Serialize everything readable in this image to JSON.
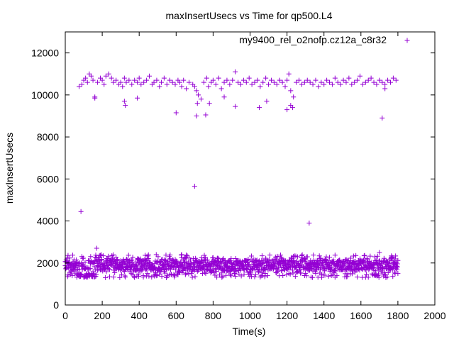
{
  "chart_data": {
    "type": "scatter",
    "title": "maxInsertUsecs vs Time for qp500.L4",
    "xlabel": "Time(s)",
    "ylabel": "maxInsertUsecs",
    "xlim": [
      0,
      2000
    ],
    "ylim": [
      0,
      13000
    ],
    "x_ticks": [
      0,
      200,
      400,
      600,
      800,
      1000,
      1200,
      1400,
      1600,
      1800,
      2000
    ],
    "y_ticks": [
      0,
      2000,
      4000,
      6000,
      8000,
      10000,
      12000
    ],
    "grid": false,
    "legend_position": "top-right",
    "marker": "+",
    "series": [
      {
        "name": "my9400_rel_o2nofp.cz12a_c8r32",
        "color": "#9400d3",
        "x": [
          75,
          90,
          100,
          110,
          120,
          130,
          140,
          150,
          160,
          175,
          190,
          200,
          210,
          220,
          235,
          250,
          260,
          275,
          290,
          300,
          310,
          320,
          330,
          345,
          360,
          375,
          390,
          400,
          410,
          425,
          440,
          455,
          470,
          480,
          495,
          510,
          520,
          535,
          550,
          565,
          580,
          595,
          610,
          620,
          630,
          640,
          655,
          670,
          690,
          700,
          710,
          720,
          735,
          750,
          765,
          775,
          790,
          800,
          815,
          830,
          845,
          860,
          875,
          890,
          905,
          920,
          935,
          950,
          965,
          980,
          995,
          1010,
          1025,
          1040,
          1055,
          1070,
          1085,
          1100,
          1115,
          1130,
          1145,
          1160,
          1175,
          1190,
          1200,
          1210,
          1220,
          1235,
          1250,
          1265,
          1280,
          1295,
          1310,
          1325,
          1340,
          1355,
          1370,
          1385,
          1400,
          1415,
          1430,
          1445,
          1460,
          1475,
          1490,
          1505,
          1520,
          1535,
          1550,
          1565,
          1580,
          1595,
          1610,
          1625,
          1640,
          1655,
          1670,
          1685,
          1700,
          1715,
          1730,
          1745,
          1760,
          1775,
          1790,
          85,
          160,
          320,
          325,
          390,
          600,
          700,
          710,
          715,
          760,
          780,
          860,
          920,
          1050,
          1090,
          1200,
          1220,
          1230,
          1320,
          1715,
          1730
        ],
        "y": [
          10400,
          10500,
          10700,
          10800,
          10600,
          11000,
          10900,
          10700,
          9900,
          10600,
          10800,
          10700,
          10500,
          10900,
          11000,
          10800,
          10600,
          10700,
          10500,
          10600,
          10400,
          10800,
          10600,
          10700,
          10500,
          10700,
          10600,
          10800,
          10500,
          10600,
          10700,
          10900,
          10500,
          10600,
          10700,
          10400,
          10600,
          10800,
          10500,
          10700,
          10600,
          10500,
          10700,
          10600,
          10400,
          10700,
          10300,
          10600,
          10500,
          10400,
          10200,
          10000,
          9800,
          10600,
          10800,
          10400,
          10600,
          10700,
          10500,
          10800,
          10300,
          10600,
          10700,
          10500,
          10700,
          11100,
          10600,
          10500,
          10700,
          10600,
          10800,
          10500,
          10600,
          10700,
          10400,
          10600,
          10800,
          10500,
          10700,
          10600,
          10500,
          10700,
          10600,
          10400,
          10700,
          11000,
          10200,
          9900,
          10600,
          10700,
          10500,
          10600,
          10700,
          10600,
          10500,
          10700,
          10400,
          10600,
          10500,
          10700,
          10600,
          10500,
          10800,
          10600,
          10500,
          10700,
          10600,
          10800,
          10500,
          10600,
          10700,
          10900,
          10500,
          10600,
          10700,
          10800,
          10600,
          10500,
          10700,
          10600,
          10500,
          10700,
          10600,
          10800,
          10700,
          4450,
          9850,
          9700,
          9500,
          9850,
          9150,
          5650,
          9000,
          9600,
          9050,
          9600,
          9900,
          9450,
          9400,
          9700,
          9300,
          9500,
          9400,
          3900,
          8900,
          10300
        ]
      }
    ],
    "low_band": {
      "x_start": 0,
      "x_end": 1800,
      "y_min": 1300,
      "y_max": 2400,
      "typical": 1900,
      "outliers": [
        {
          "x": 170,
          "y": 2700
        },
        {
          "x": 1700,
          "y": 2500
        }
      ]
    }
  }
}
